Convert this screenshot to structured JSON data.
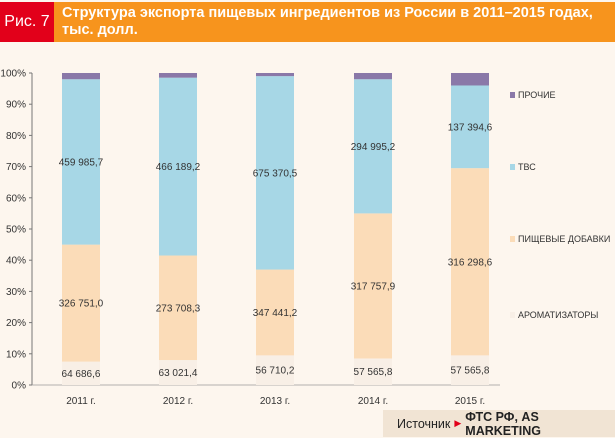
{
  "figure_label": "Рис. 7",
  "title": "Структура экспорта пищевых ингредиентов из России в 2011–2015 годах, тыс. долл.",
  "source": {
    "label": "Источник",
    "arrow": "▶",
    "name": "ФТС РФ,  AS MARKETING"
  },
  "colors": {
    "Прочие": "#8a78a8",
    "ТВС": "#a7d7e6",
    "Пищевые добавки": "#fbdcb8",
    "Ароматизаторы": "#f8efe6"
  },
  "chart_data": {
    "type": "bar",
    "stacked": true,
    "categories": [
      "2011 г.",
      "2012 г.",
      "2013 г.",
      "2014 г.",
      "2015 г."
    ],
    "ylim": [
      0,
      100
    ],
    "yticks": [
      "0%",
      "10%",
      "20%",
      "30%",
      "40%",
      "50%",
      "60%",
      "70%",
      "80%",
      "90%",
      "100%"
    ],
    "grid": false,
    "legend_position": "right",
    "series": [
      {
        "name": "АРОМАТИЗАТОРЫ",
        "key": "Ароматизаторы",
        "shares": [
          7.5,
          8,
          9.5,
          8.5,
          9.5
        ],
        "labels": [
          "64 686,6",
          "63 021,4",
          "56 710,2",
          "57 565,8",
          "57 565,8"
        ]
      },
      {
        "name": "ПИЩЕВЫЕ ДОБАВКИ",
        "key": "Пищевые добавки",
        "shares": [
          37.5,
          33.5,
          27.5,
          46.5,
          60
        ],
        "labels": [
          "326 751,0",
          "273 708,3",
          "347 441,2",
          "317 757,9",
          "316 298,6"
        ]
      },
      {
        "name": "ТВС",
        "key": "ТВС",
        "shares": [
          53,
          57,
          62,
          43,
          26.5
        ],
        "labels": [
          "459 985,7",
          "466 189,2",
          "675 370,5",
          "294 995,2",
          "137 394,6"
        ]
      },
      {
        "name": "ПРОЧИЕ",
        "key": "Прочие",
        "shares": [
          2,
          1.5,
          1,
          2,
          4
        ],
        "labels": [
          "",
          "",
          "",
          "",
          ""
        ]
      }
    ]
  }
}
